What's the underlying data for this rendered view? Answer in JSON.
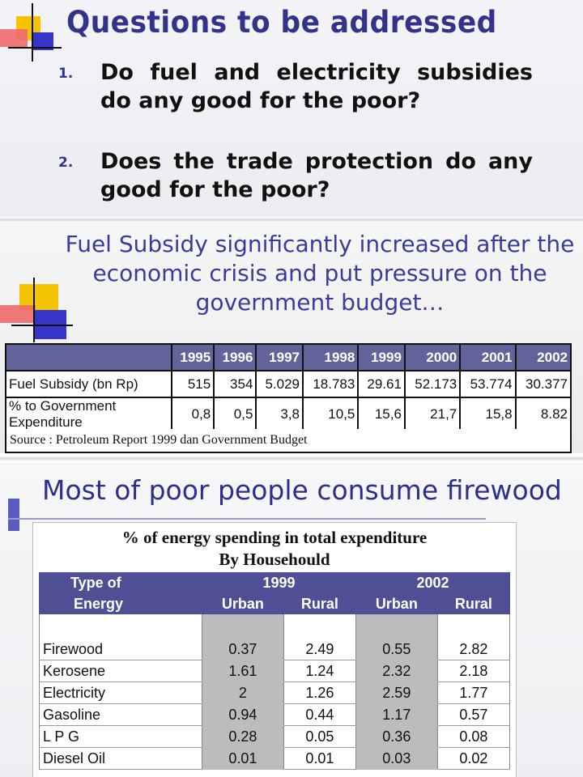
{
  "slide1": {
    "title": "Questions to be addressed",
    "questions": [
      {
        "num": "1.",
        "text": "Do fuel and electricity subsidies do any good for the poor?"
      },
      {
        "num": "2.",
        "text": "Does the trade protection do any good for the poor?"
      }
    ]
  },
  "slide2": {
    "title": "Fuel Subsidy significantly increased after the economic crisis and put pressure on the government budget…",
    "table": {
      "years": [
        "1995",
        "1996",
        "1997",
        "1998",
        "1999",
        "2000",
        "2001",
        "2002"
      ],
      "rows": [
        {
          "label": "Fuel Subsidy (bn Rp)",
          "values": [
            "515",
            "354",
            "5.029",
            "18.783",
            "29.61",
            "52.173",
            "53.774",
            "30.377"
          ]
        },
        {
          "label": "% to Government Expenditure",
          "values": [
            "0,8",
            "0,5",
            "3,8",
            "10,5",
            "15,6",
            "21,7",
            "15,8",
            "8.82"
          ]
        }
      ]
    },
    "source": "Source : Petroleum Report 1999 dan Government Budget"
  },
  "slide3": {
    "title": "Most of poor people consume firewood",
    "table_title": "% of energy spending in total expenditure",
    "table_subtitle": "By Househould",
    "header": {
      "type_line1": "Type of",
      "type_line2": "Energy",
      "year1": "1999",
      "year2": "2002",
      "urban": "Urban",
      "rural": "Rural"
    },
    "rows": [
      {
        "type": "Firewood",
        "u1999": "0.37",
        "r1999": "2.49",
        "u2002": "0.55",
        "r2002": "2.82"
      },
      {
        "type": "Kerosene",
        "u1999": "1.61",
        "r1999": "1.24",
        "u2002": "2.32",
        "r2002": "2.18"
      },
      {
        "type": "Electricity",
        "u1999": "2",
        "r1999": "1.26",
        "u2002": "2.59",
        "r2002": "1.77"
      },
      {
        "type": "Gasoline",
        "u1999": "0.94",
        "r1999": "0.44",
        "u2002": "1.17",
        "r2002": "0.57"
      },
      {
        "type": "L P G",
        "u1999": "0.28",
        "r1999": "0.05",
        "u2002": "0.36",
        "r2002": "0.08"
      },
      {
        "type": "Diesel Oil",
        "u1999": "0.01",
        "r1999": "0.01",
        "u2002": "0.03",
        "r2002": "0.02"
      }
    ]
  },
  "colors": {
    "title_blue": "#33338a",
    "header_purple": "#4e4f94",
    "deco_yellow": "#f5c400",
    "deco_red": "#e0323a",
    "deco_blue": "#3535c8"
  }
}
